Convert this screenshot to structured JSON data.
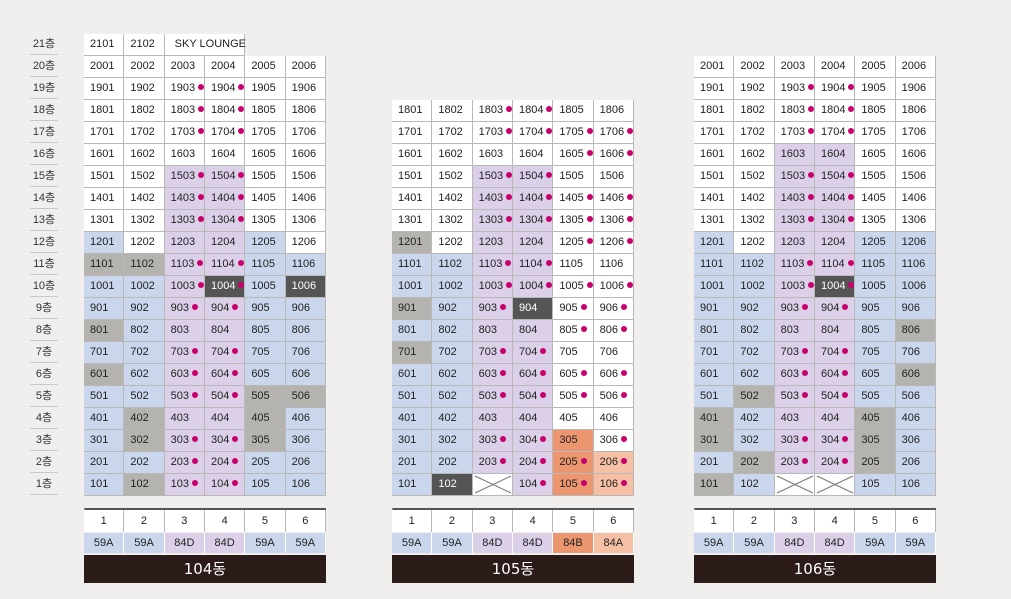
{
  "floor_labels": [
    "21층",
    "20층",
    "19층",
    "18층",
    "17층",
    "16층",
    "15층",
    "14층",
    "13층",
    "12층",
    "11층",
    "10층",
    "9층",
    "8층",
    "7층",
    "6층",
    "5층",
    "4층",
    "3층",
    "2층",
    "1층"
  ],
  "colors": {
    "white": "#ffffff",
    "blue": "#c9d6ec",
    "lavender": "#dcd0e9",
    "gray": "#b4b3b0",
    "dark": "#555555",
    "orange": "#ec9670",
    "peach": "#f6c0a5",
    "dot": "#c8006e",
    "name_bar": "#2b1c1a"
  },
  "legend_note": "dot marks a highlighted unit; X cell = no unit",
  "buildings": [
    {
      "name": "104동",
      "top_floor": 21,
      "lines": [
        "1",
        "2",
        "3",
        "4",
        "5",
        "6"
      ],
      "types": [
        "59A",
        "59A",
        "84D",
        "84D",
        "59A",
        "59A"
      ],
      "type_colors": [
        "blue",
        "blue",
        "lavender",
        "lavender",
        "blue",
        "blue"
      ],
      "sky_lounge": {
        "cells": [
          "2101",
          "2102"
        ],
        "label": "SKY LOUNGE"
      },
      "rows": [
        [
          "2001:white",
          "2002:white",
          "2003:white",
          "2004:white",
          "2005:white",
          "2006:white"
        ],
        [
          "1901:white",
          "1902:white",
          "1903:white:d",
          "1904:white:d",
          "1905:white",
          "1906:white"
        ],
        [
          "1801:white",
          "1802:white",
          "1803:white:d",
          "1804:white:d",
          "1805:white",
          "1806:white"
        ],
        [
          "1701:white",
          "1702:white",
          "1703:white:d",
          "1704:white:d",
          "1705:white",
          "1706:white"
        ],
        [
          "1601:white",
          "1602:white",
          "1603:white",
          "1604:white",
          "1605:white",
          "1606:white"
        ],
        [
          "1501:white",
          "1502:white",
          "1503:lav:d",
          "1504:lav:d",
          "1505:white",
          "1506:white"
        ],
        [
          "1401:white",
          "1402:white",
          "1403:lav:d",
          "1404:lav:d",
          "1405:white",
          "1406:white"
        ],
        [
          "1301:white",
          "1302:white",
          "1303:lav:d",
          "1304:lav:d",
          "1305:white",
          "1306:white"
        ],
        [
          "1201:blue",
          "1202:white",
          "1203:lav",
          "1204:lav",
          "1205:blue",
          "1206:white"
        ],
        [
          "1101:gray",
          "1102:gray",
          "1103:lav:d",
          "1104:lav:d",
          "1105:blue",
          "1106:blue"
        ],
        [
          "1001:blue",
          "1002:blue",
          "1003:lav:d",
          "1004:dark:d",
          "1005:blue",
          "1006:dark"
        ],
        [
          "901:blue",
          "902:blue",
          "903:lav:d",
          "904:lav:d",
          "905:blue",
          "906:blue"
        ],
        [
          "801:gray",
          "802:blue",
          "803:lav",
          "804:lav",
          "805:blue",
          "806:blue"
        ],
        [
          "701:blue",
          "702:blue",
          "703:lav:d",
          "704:lav:d",
          "705:blue",
          "706:blue"
        ],
        [
          "601:gray",
          "602:blue",
          "603:lav:d",
          "604:lav:d",
          "605:blue",
          "606:blue"
        ],
        [
          "501:blue",
          "502:blue",
          "503:lav:d",
          "504:lav:d",
          "505:gray",
          "506:gray"
        ],
        [
          "401:blue",
          "402:gray",
          "403:lav",
          "404:lav",
          "405:gray",
          "406:blue"
        ],
        [
          "301:blue",
          "302:gray",
          "303:lav:d",
          "304:lav:d",
          "305:gray",
          "306:blue"
        ],
        [
          "201:blue",
          "202:blue",
          "203:lav:d",
          "204:lav:d",
          "205:blue",
          "206:blue"
        ],
        [
          "101:blue",
          "102:gray",
          "103:lav:d",
          "104:lav:d",
          "105:blue",
          "106:blue"
        ]
      ]
    },
    {
      "name": "105동",
      "top_floor": 18,
      "lines": [
        "1",
        "2",
        "3",
        "4",
        "5",
        "6"
      ],
      "types": [
        "59A",
        "59A",
        "84D",
        "84D",
        "84B",
        "84A"
      ],
      "type_colors": [
        "blue",
        "blue",
        "lavender",
        "lavender",
        "orange",
        "peach"
      ],
      "rows": [
        [
          "1801:white",
          "1802:white",
          "1803:white:d",
          "1804:white:d",
          "1805:white",
          "1806:white"
        ],
        [
          "1701:white",
          "1702:white",
          "1703:white:d",
          "1704:white:d",
          "1705:white:d",
          "1706:white:d"
        ],
        [
          "1601:white",
          "1602:white",
          "1603:white",
          "1604:white",
          "1605:white:d",
          "1606:white:d"
        ],
        [
          "1501:white",
          "1502:white",
          "1503:lav:d",
          "1504:lav:d",
          "1505:white",
          "1506:white"
        ],
        [
          "1401:white",
          "1402:white",
          "1403:lav:d",
          "1404:lav:d",
          "1405:white:d",
          "1406:white:d"
        ],
        [
          "1301:white",
          "1302:white",
          "1303:lav:d",
          "1304:lav:d",
          "1305:white:d",
          "1306:white:d"
        ],
        [
          "1201:gray",
          "1202:white",
          "1203:lav",
          "1204:lav",
          "1205:white:d",
          "1206:white:d"
        ],
        [
          "1101:blue",
          "1102:blue",
          "1103:lav:d",
          "1104:lav:d",
          "1105:white",
          "1106:white"
        ],
        [
          "1001:blue",
          "1002:blue",
          "1003:lav:d",
          "1004:lav:d",
          "1005:white:d",
          "1006:white:d"
        ],
        [
          "901:gray",
          "902:blue",
          "903:lav:d",
          "904:dark",
          "905:white:d",
          "906:white:d"
        ],
        [
          "801:blue",
          "802:blue",
          "803:lav",
          "804:lav",
          "805:white:d",
          "806:white:d"
        ],
        [
          "701:gray",
          "702:blue",
          "703:lav:d",
          "704:lav:d",
          "705:white",
          "706:white"
        ],
        [
          "601:blue",
          "602:blue",
          "603:lav:d",
          "604:lav:d",
          "605:white:d",
          "606:white:d"
        ],
        [
          "501:blue",
          "502:blue",
          "503:lav:d",
          "504:lav:d",
          "505:white:d",
          "506:white:d"
        ],
        [
          "401:blue",
          "402:blue",
          "403:lav",
          "404:lav",
          "405:white",
          "406:white"
        ],
        [
          "301:blue",
          "302:blue",
          "303:lav:d",
          "304:lav:d",
          "305:orange",
          "306:white:d"
        ],
        [
          "201:blue",
          "202:blue",
          "203:lav:d",
          "204:lav:d",
          "205:orange:d",
          "206:peach:d"
        ],
        [
          "101:blue",
          "102:dark",
          "x:none",
          "104:lav:d",
          "105:orange:d",
          "106:peach:d"
        ]
      ]
    },
    {
      "name": "106동",
      "top_floor": 20,
      "lines": [
        "1",
        "2",
        "3",
        "4",
        "5",
        "6"
      ],
      "types": [
        "59A",
        "59A",
        "84D",
        "84D",
        "59A",
        "59A"
      ],
      "type_colors": [
        "blue",
        "blue",
        "lavender",
        "lavender",
        "blue",
        "blue"
      ],
      "rows": [
        [
          "2001:white",
          "2002:white",
          "2003:white",
          "2004:white",
          "2005:white",
          "2006:white"
        ],
        [
          "1901:white",
          "1902:white",
          "1903:white:d",
          "1904:white:d",
          "1905:white",
          "1906:white"
        ],
        [
          "1801:white",
          "1802:white",
          "1803:white:d",
          "1804:white:d",
          "1805:white",
          "1806:white"
        ],
        [
          "1701:white",
          "1702:white",
          "1703:white:d",
          "1704:white:d",
          "1705:white",
          "1706:white"
        ],
        [
          "1601:white",
          "1602:white",
          "1603:lav",
          "1604:lav",
          "1605:white",
          "1606:white"
        ],
        [
          "1501:white",
          "1502:white",
          "1503:lav:d",
          "1504:lav:d",
          "1505:white",
          "1506:white"
        ],
        [
          "1401:white",
          "1402:white",
          "1403:lav:d",
          "1404:lav:d",
          "1405:white",
          "1406:white"
        ],
        [
          "1301:white",
          "1302:white",
          "1303:lav:d",
          "1304:lav:d",
          "1305:white",
          "1306:white"
        ],
        [
          "1201:blue",
          "1202:white",
          "1203:lav",
          "1204:lav",
          "1205:blue",
          "1206:blue"
        ],
        [
          "1101:blue",
          "1102:blue",
          "1103:lav:d",
          "1104:lav:d",
          "1105:blue",
          "1106:blue"
        ],
        [
          "1001:blue",
          "1002:blue",
          "1003:lav:d",
          "1004:dark:d",
          "1005:blue",
          "1006:blue"
        ],
        [
          "901:blue",
          "902:blue",
          "903:lav:d",
          "904:lav:d",
          "905:blue",
          "906:blue"
        ],
        [
          "801:blue",
          "802:blue",
          "803:lav",
          "804:lav",
          "805:blue",
          "806:gray"
        ],
        [
          "701:blue",
          "702:blue",
          "703:lav:d",
          "704:lav:d",
          "705:blue",
          "706:blue"
        ],
        [
          "601:blue",
          "602:blue",
          "603:lav:d",
          "604:lav:d",
          "605:blue",
          "606:gray"
        ],
        [
          "501:blue",
          "502:gray",
          "503:lav:d",
          "504:lav:d",
          "505:blue",
          "506:blue"
        ],
        [
          "401:gray",
          "402:blue",
          "403:lav",
          "404:lav",
          "405:gray",
          "406:blue"
        ],
        [
          "301:gray",
          "302:blue",
          "303:lav:d",
          "304:lav:d",
          "305:gray",
          "306:blue"
        ],
        [
          "201:blue",
          "202:gray",
          "203:lav:d",
          "204:lav:d",
          "205:gray",
          "206:blue"
        ],
        [
          "101:gray",
          "102:blue",
          "x:none",
          "x:none",
          "105:blue",
          "106:blue"
        ]
      ]
    }
  ]
}
